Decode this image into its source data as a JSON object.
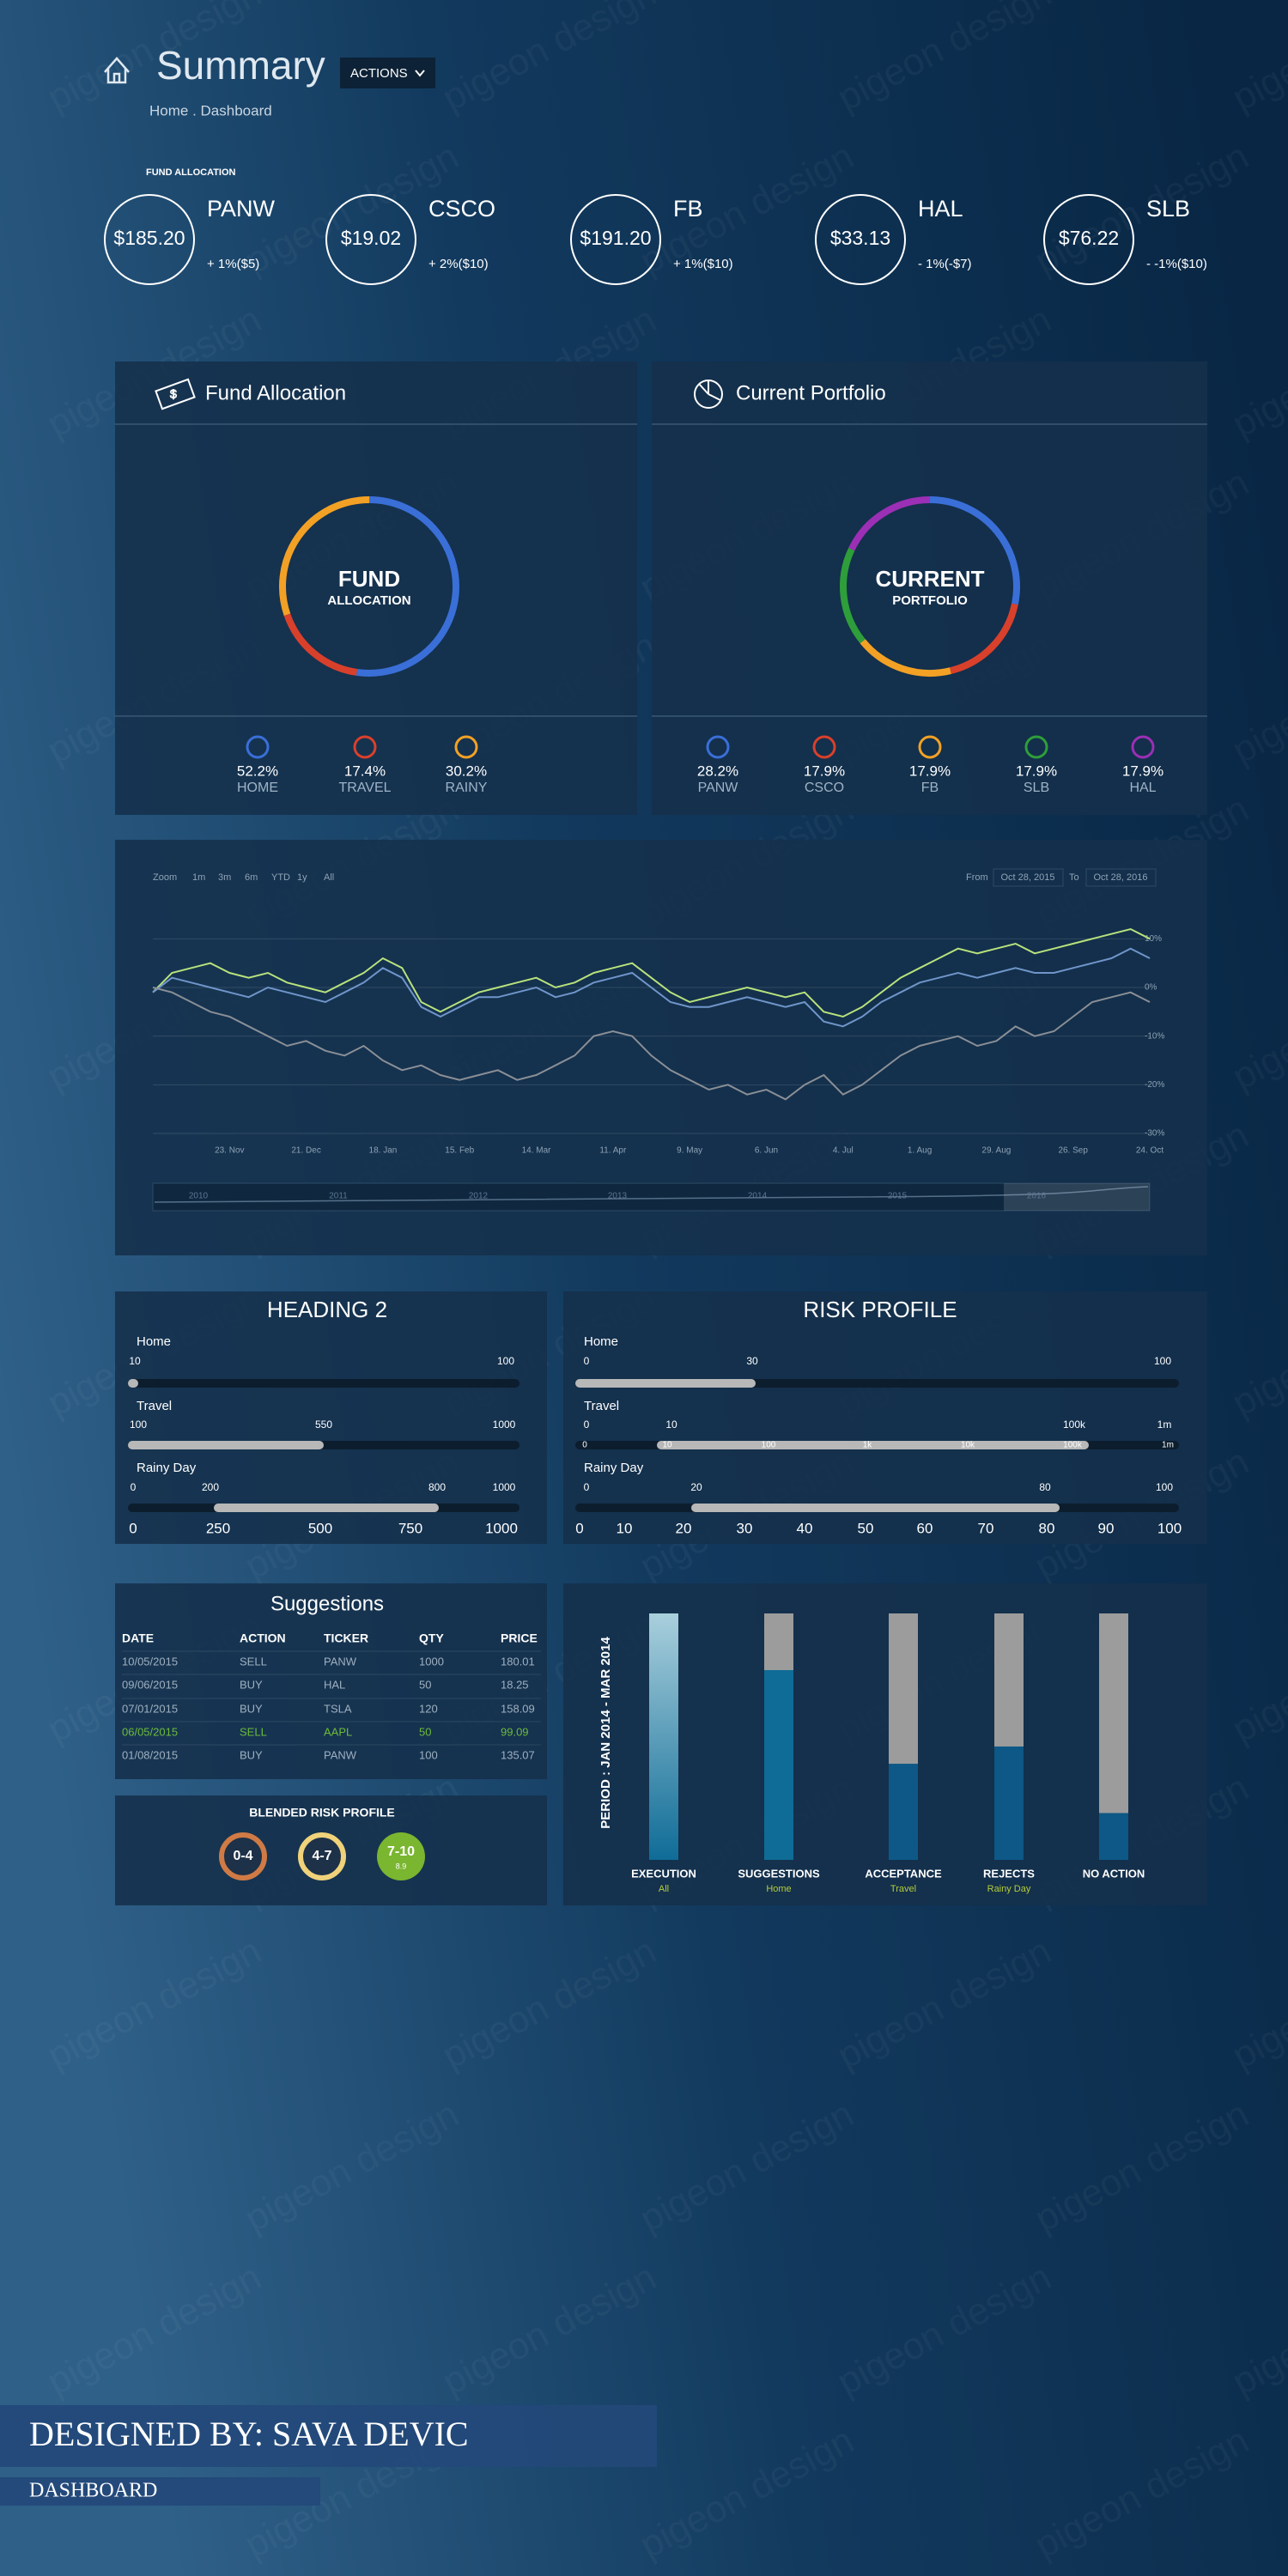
{
  "header": {
    "title": "Summary",
    "actions": "ACTIONS",
    "breadcrumb": "Home . Dashboard"
  },
  "fund_allocation_label": "FUND ALLOCATION",
  "tickers": [
    {
      "price": "$185.20",
      "symbol": "PANW",
      "change": "+ 1%($5)"
    },
    {
      "price": "$19.02",
      "symbol": "CSCO",
      "change": "+ 2%($10)"
    },
    {
      "price": "$191.20",
      "symbol": "FB",
      "change": "+ 1%($10)"
    },
    {
      "price": "$33.13",
      "symbol": "HAL",
      "change": "- 1%(-$7)"
    },
    {
      "price": "$76.22",
      "symbol": "SLB",
      "change": "- -1%($10)"
    }
  ],
  "chart_data": [
    {
      "type": "pie",
      "title": "Fund Allocation",
      "center_label": [
        "FUND",
        "ALLOCATION"
      ],
      "categories": [
        "HOME",
        "TRAVEL",
        "RAINY"
      ],
      "values": [
        52.2,
        17.4,
        30.2
      ],
      "value_labels": [
        "52.2%",
        "17.4%",
        "30.2%"
      ],
      "colors": [
        "#3a6fd8",
        "#d9402b",
        "#f2a125"
      ]
    },
    {
      "type": "pie",
      "title": "Current Portfolio",
      "center_label": [
        "CURRENT",
        "PORTFOLIO"
      ],
      "categories": [
        "PANW",
        "CSCO",
        "FB",
        "SLB",
        "HAL"
      ],
      "values": [
        28.2,
        17.9,
        17.9,
        17.9,
        17.9
      ],
      "value_labels": [
        "28.2%",
        "17.9%",
        "17.9%",
        "17.9%",
        "17.9%"
      ],
      "colors": [
        "#3a6fd8",
        "#d9402b",
        "#f2a125",
        "#2e9e3a",
        "#9b2fb5"
      ]
    },
    {
      "type": "line",
      "zoom": {
        "label": "Zoom",
        "options": [
          "1m",
          "3m",
          "6m",
          "YTD",
          "1y",
          "All"
        ]
      },
      "from": {
        "label": "From",
        "value": "Oct 28, 2015"
      },
      "to": {
        "label": "To",
        "value": "Oct 28, 2016"
      },
      "x": [
        null,
        null,
        null,
        null,
        "23. Nov",
        null,
        null,
        null,
        "21. Dec",
        null,
        null,
        null,
        "18. Jan",
        null,
        null,
        null,
        "15. Feb",
        null,
        null,
        null,
        "14. Mar",
        null,
        null,
        null,
        "11. Apr",
        null,
        null,
        null,
        "9. May",
        null,
        null,
        null,
        "6. Jun",
        null,
        null,
        null,
        "4. Jul",
        null,
        null,
        null,
        "1. Aug",
        null,
        null,
        null,
        "29. Aug",
        null,
        null,
        null,
        "26. Sep",
        null,
        null,
        null,
        "24. Oct"
      ],
      "series": [
        {
          "color": "#b8e27c",
          "values": [
            -1,
            3,
            4,
            5,
            3,
            2,
            3,
            1,
            0,
            -1,
            1,
            3,
            6,
            4,
            -3,
            -5,
            -3,
            -1,
            0,
            1,
            2,
            0,
            1,
            3,
            4,
            5,
            2,
            -1,
            -3,
            -2,
            -1,
            0,
            -1,
            -2,
            -1,
            -5,
            -6,
            -4,
            -1,
            2,
            4,
            6,
            8,
            7,
            8,
            9,
            7,
            8,
            9,
            10,
            11,
            12,
            10
          ]
        },
        {
          "color": "#6f95c9",
          "values": [
            -1,
            2,
            1,
            0,
            -1,
            -2,
            0,
            -1,
            -2,
            -3,
            -1,
            1,
            4,
            2,
            -4,
            -6,
            -4,
            -2,
            -2,
            -1,
            0,
            -2,
            -1,
            1,
            2,
            3,
            0,
            -3,
            -4,
            -4,
            -3,
            -2,
            -3,
            -4,
            -3,
            -7,
            -8,
            -6,
            -3,
            -1,
            1,
            2,
            3,
            2,
            3,
            4,
            3,
            3,
            4,
            5,
            6,
            8,
            6
          ]
        },
        {
          "color": "#8a8f96",
          "values": [
            0,
            -1,
            -3,
            -5,
            -6,
            -8,
            -10,
            -12,
            -11,
            -13,
            -14,
            -12,
            -15,
            -17,
            -16,
            -18,
            -19,
            -18,
            -17,
            -19,
            -18,
            -16,
            -14,
            -10,
            -9,
            -10,
            -14,
            -17,
            -19,
            -21,
            -20,
            -22,
            -21,
            -23,
            -20,
            -18,
            -22,
            -20,
            -17,
            -14,
            -12,
            -11,
            -10,
            -12,
            -11,
            -8,
            -10,
            -9,
            -6,
            -3,
            -2,
            -1,
            -3
          ]
        }
      ],
      "ylim": [
        -30,
        15
      ],
      "yticks": [
        {
          "value": 10,
          "label": "10%"
        },
        {
          "value": 0,
          "label": "0%"
        },
        {
          "value": -10,
          "label": "-10%"
        },
        {
          "value": -20,
          "label": "-20%"
        },
        {
          "value": -30,
          "label": "-30%"
        }
      ],
      "grid": true,
      "navigator_labels": [
        "2010",
        "2011",
        "2012",
        "2013",
        "2014",
        "2015",
        "2016"
      ]
    },
    {
      "type": "bar",
      "ylabel": "PERIOD : JAN 2014 - MAR 2014",
      "categories": [
        "EXECUTION",
        "SUGGESTIONS",
        "ACCEPTANCE",
        "REJECTS",
        "NO ACTION"
      ],
      "subcategories": [
        "All",
        "Home",
        "Travel",
        "Rainy Day",
        null
      ],
      "values": [
        100,
        77,
        39,
        46,
        19
      ],
      "ylim": [
        0,
        100
      ],
      "colors": [
        "#5fa6c0",
        "#0f6c97",
        "#0d5886",
        "#0d5886",
        "#0d5886"
      ]
    }
  ],
  "heading2": {
    "title": "HEADING 2",
    "rows": [
      {
        "label": "Home",
        "ticks": [
          "10",
          "100"
        ]
      },
      {
        "label": "Travel",
        "ticks": [
          "100",
          "550",
          "1000"
        ]
      },
      {
        "label": "Rainy Day",
        "ticks": [
          "0",
          "200",
          "800",
          "1000"
        ]
      }
    ],
    "axis": [
      "0",
      "250",
      "500",
      "750",
      "1000"
    ]
  },
  "risk_profile": {
    "title": "RISK PROFILE",
    "rows": [
      {
        "label": "Home",
        "ticks": [
          "0",
          "30",
          "100"
        ]
      },
      {
        "label": "Travel",
        "ticks": [
          "0",
          "10",
          "100k",
          "1m"
        ],
        "scale": [
          "0",
          "10",
          "100",
          "1k",
          "10k",
          "100k",
          "1m"
        ]
      },
      {
        "label": "Rainy Day",
        "ticks": [
          "0",
          "20",
          "80",
          "100"
        ]
      }
    ],
    "axis": [
      "0",
      "10",
      "20",
      "30",
      "40",
      "50",
      "60",
      "70",
      "80",
      "90",
      "100"
    ]
  },
  "suggestions": {
    "title": "Suggestions",
    "columns": [
      "DATE",
      "ACTION",
      "TICKER",
      "QTY",
      "PRICE"
    ],
    "rows": [
      [
        "10/05/2015",
        "SELL",
        "PANW",
        "1000",
        "180.01"
      ],
      [
        "09/06/2015",
        "BUY",
        "HAL",
        "50",
        "18.25"
      ],
      [
        "07/01/2015",
        "BUY",
        "TSLA",
        "120",
        "158.09"
      ],
      [
        "06/05/2015",
        "SELL",
        "AAPL",
        "50",
        "99.09"
      ],
      [
        "01/08/2015",
        "BUY",
        "PANW",
        "100",
        "135.07"
      ]
    ]
  },
  "blended": {
    "title": "BLENDED RISK PROFILE",
    "levels": [
      "0-4",
      "4-7",
      "7-10"
    ],
    "score": "8.9"
  },
  "footer": {
    "designer": "DESIGNED BY: SAVA DEVIC",
    "page": "DASHBOARD"
  },
  "watermark": "pigeon design"
}
